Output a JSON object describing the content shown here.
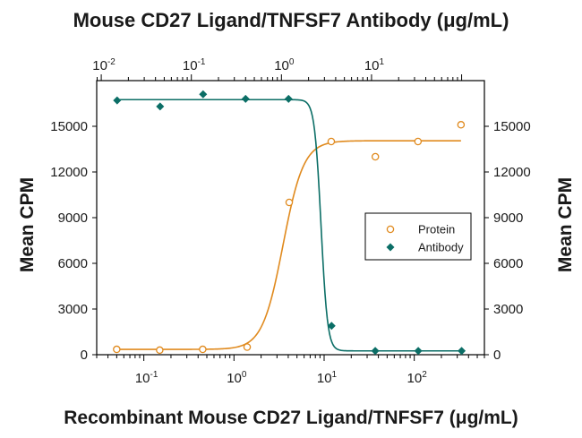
{
  "chart_data": {
    "type": "scatter",
    "title": "Mouse CD27 Ligand/TNFSF7 Antibody (μg/mL)",
    "xlabel": "Recombinant Mouse CD27 Ligand/TNFSF7 (μg/mL)",
    "ylabel": "Mean CPM",
    "ylabel_right": "Mean CPM",
    "x_scale": "log",
    "xlim": [
      0.03,
      600
    ],
    "x_ticks": [
      {
        "value": 0.1,
        "base": "10",
        "exp": "-1"
      },
      {
        "value": 1,
        "base": "10",
        "exp": "0"
      },
      {
        "value": 10,
        "base": "10",
        "exp": "1"
      },
      {
        "value": 100,
        "base": "10",
        "exp": "2"
      }
    ],
    "top_axis": {
      "scale": "log",
      "xlim": [
        0.0089,
        179
      ],
      "ticks": [
        {
          "value": 0.01,
          "base": "10",
          "exp": "-2"
        },
        {
          "value": 0.1,
          "base": "10",
          "exp": "-1"
        },
        {
          "value": 1,
          "base": "10",
          "exp": "0"
        },
        {
          "value": 10,
          "base": "10",
          "exp": "1"
        }
      ]
    },
    "ylim": [
      0,
      18000
    ],
    "y_ticks": [
      "0",
      "3000",
      "6000",
      "9000",
      "12000",
      "15000"
    ],
    "y_ticks_right": [
      "0",
      "3000",
      "6000",
      "9000",
      "12000",
      "15000"
    ],
    "legend": {
      "position": "center-right",
      "entries": [
        {
          "label": "Protein",
          "marker": "open-circle",
          "color": "#e08a1e"
        },
        {
          "label": "Antibody",
          "marker": "filled-diamond",
          "color": "#0b6e66"
        }
      ]
    },
    "series": [
      {
        "name": "Protein",
        "axis": "bottom",
        "color": "#e08a1e",
        "marker": "open-circle",
        "points": [
          {
            "x": 0.05,
            "y": 350
          },
          {
            "x": 0.15,
            "y": 300
          },
          {
            "x": 0.45,
            "y": 350
          },
          {
            "x": 1.4,
            "y": 500
          },
          {
            "x": 4.1,
            "y": 10000
          },
          {
            "x": 12,
            "y": 14000
          },
          {
            "x": 37,
            "y": 13000
          },
          {
            "x": 110,
            "y": 14000
          },
          {
            "x": 330,
            "y": 15100
          }
        ],
        "fit": {
          "bottom": 350,
          "top": 14050,
          "ec50": 3.5,
          "hill": 3.8
        }
      },
      {
        "name": "Antibody",
        "axis": "top",
        "color": "#0b6e66",
        "marker": "filled-diamond",
        "points": [
          {
            "x": 0.015,
            "y": 16700
          },
          {
            "x": 0.045,
            "y": 16300
          },
          {
            "x": 0.135,
            "y": 17100
          },
          {
            "x": 0.4,
            "y": 16800
          },
          {
            "x": 1.2,
            "y": 16800
          },
          {
            "x": 3.6,
            "y": 1900
          },
          {
            "x": 11,
            "y": 250
          },
          {
            "x": 33,
            "y": 250
          },
          {
            "x": 100,
            "y": 250
          }
        ],
        "fit": {
          "bottom": 250,
          "top": 16750,
          "ic50": 2.75,
          "hill": 12
        }
      }
    ]
  },
  "colors": {
    "protein": "#e08a1e",
    "antibody": "#0b6e66",
    "axis": "#000000",
    "text": "#1a1a1a"
  }
}
